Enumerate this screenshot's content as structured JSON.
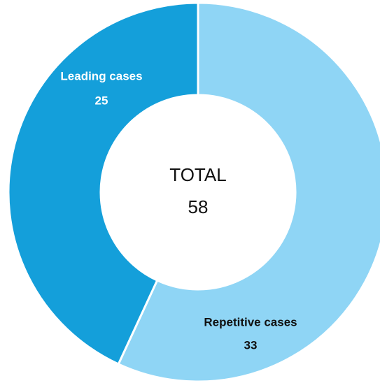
{
  "chart_data": {
    "type": "donut",
    "categories": [
      "Repetitive cases",
      "Leading cases"
    ],
    "values": [
      33,
      25
    ],
    "colors": [
      "#8fd5f5",
      "#149fda"
    ],
    "label_colors": [
      "#111111",
      "#ffffff"
    ],
    "center_label": "TOTAL",
    "total": 58
  }
}
